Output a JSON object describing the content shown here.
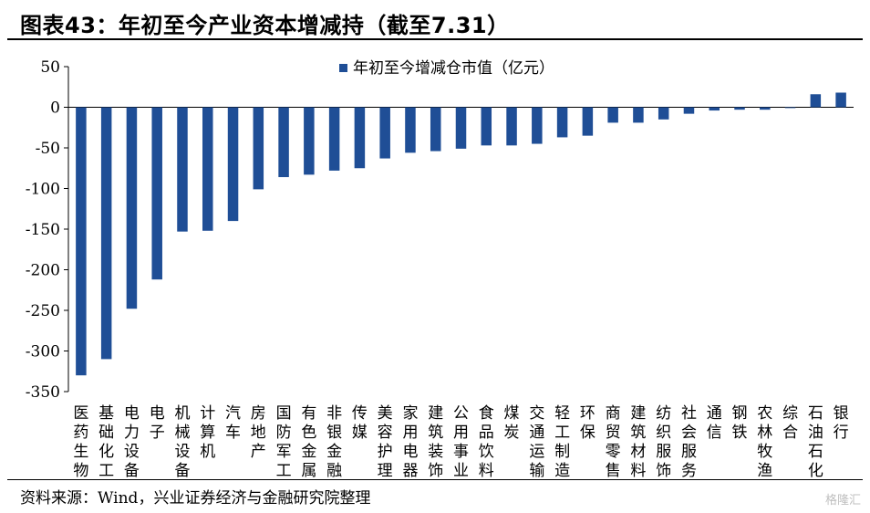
{
  "title": "图表43：年初至今产业资本增减持（截至7.31）",
  "source": "资料来源：Wind，兴业证券经济与金融研究院整理",
  "watermark": "格隆汇",
  "colors": {
    "bar": "#1f4e96",
    "axis": "#000000"
  },
  "chart_data": {
    "type": "bar",
    "title": "",
    "xlabel": "",
    "ylabel": "",
    "ylim": [
      -350,
      50
    ],
    "yticks": [
      50,
      0,
      -50,
      -100,
      -150,
      -200,
      -250,
      -300,
      -350
    ],
    "legend": {
      "position": "top-right",
      "entries": [
        "年初至今增减仓市值（亿元）"
      ]
    },
    "grid": false,
    "categories": [
      "医药生物",
      "基础化工",
      "电力设备",
      "电子",
      "机械设备",
      "计算机",
      "汽车",
      "房地产",
      "国防军工",
      "有色金属",
      "非银金融",
      "传媒",
      "美容护理",
      "家用电器",
      "建筑装饰",
      "公用事业",
      "食品饮料",
      "煤炭",
      "交通运输",
      "轻工制造",
      "环保",
      "商贸零售",
      "建筑材料",
      "纺织服饰",
      "社会服务",
      "通信",
      "钢铁",
      "农林牧渔",
      "综合",
      "石油石化",
      "银行"
    ],
    "series": [
      {
        "name": "年初至今增减仓市值（亿元）",
        "values": [
          -330,
          -310,
          -248,
          -212,
          -153,
          -152,
          -140,
          -101,
          -86,
          -83,
          -78,
          -75,
          -63,
          -56,
          -54,
          -51,
          -47,
          -47,
          -45,
          -37,
          -35,
          -19,
          -19,
          -15,
          -8,
          -4,
          -3,
          -3,
          -1,
          16,
          18
        ]
      }
    ]
  }
}
